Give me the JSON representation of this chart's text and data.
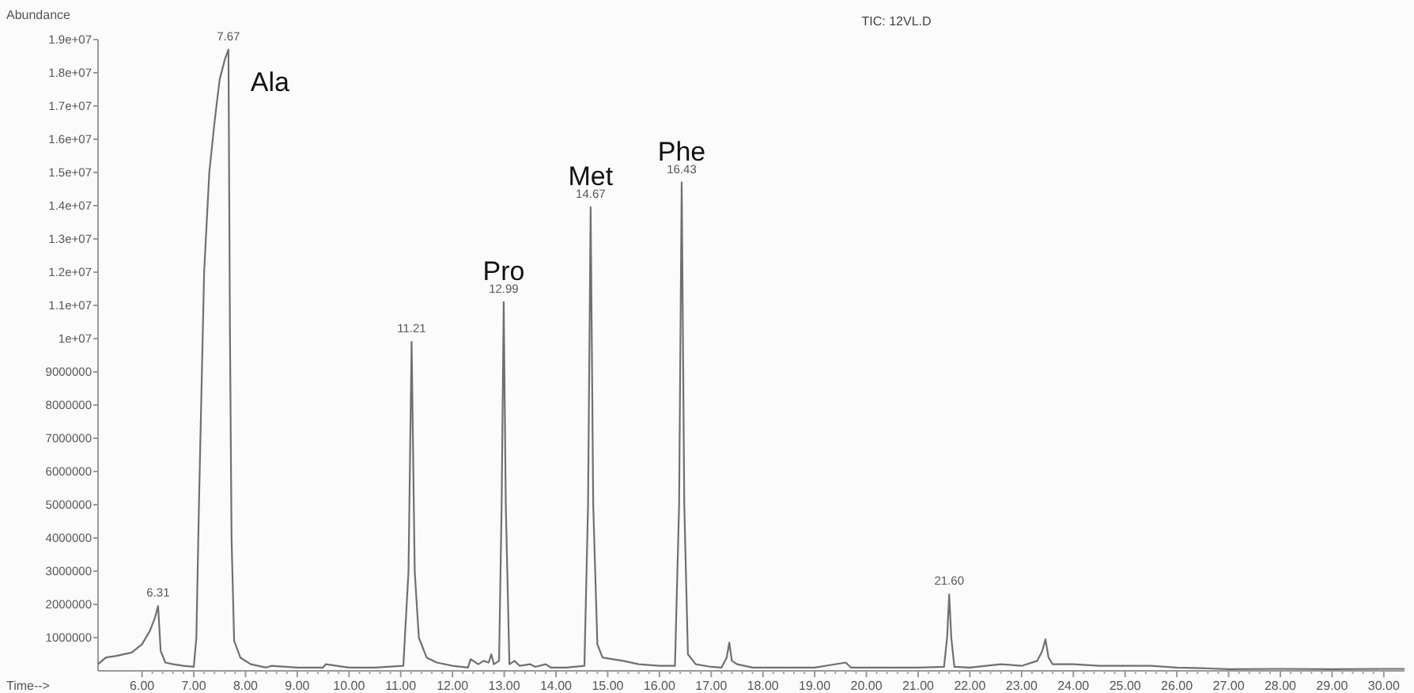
{
  "chart_data": {
    "type": "line",
    "title": "TIC: 12VL.D",
    "xlabel": "Time-->",
    "ylabel": "Abundance",
    "xlim": [
      5.15,
      30.4
    ],
    "xticks": [
      {
        "value": 6,
        "label": "6.00"
      },
      {
        "value": 7,
        "label": "7.00"
      },
      {
        "value": 8,
        "label": "8.00"
      },
      {
        "value": 9,
        "label": "9.00"
      },
      {
        "value": 10,
        "label": "10.00"
      },
      {
        "value": 11,
        "label": "11.00"
      },
      {
        "value": 12,
        "label": "12.00"
      },
      {
        "value": 13,
        "label": "13.00"
      },
      {
        "value": 14,
        "label": "14.00"
      },
      {
        "value": 15,
        "label": "15.00"
      },
      {
        "value": 16,
        "label": "16.00"
      },
      {
        "value": 17,
        "label": "17.00"
      },
      {
        "value": 18,
        "label": "18.00"
      },
      {
        "value": 19,
        "label": "19.00"
      },
      {
        "value": 20,
        "label": "20.00"
      },
      {
        "value": 21,
        "label": "21.00"
      },
      {
        "value": 22,
        "label": "22.00"
      },
      {
        "value": 23,
        "label": "23.00"
      },
      {
        "value": 24,
        "label": "24.00"
      },
      {
        "value": 25,
        "label": "25.00"
      },
      {
        "value": 26,
        "label": "26.00"
      },
      {
        "value": 27,
        "label": "27.00"
      },
      {
        "value": 28,
        "label": "28.00"
      },
      {
        "value": 29,
        "label": "29.00"
      },
      {
        "value": 30,
        "label": "30.00"
      }
    ],
    "ylim": [
      0,
      19000000
    ],
    "yticks": [
      1000000,
      2000000,
      3000000,
      4000000,
      5000000,
      6000000,
      7000000,
      8000000,
      9000000,
      {
        "value": 10000000,
        "label": "1e+07"
      },
      {
        "value": 11000000,
        "label": "1.1e+07"
      },
      {
        "value": 12000000,
        "label": "1.2e+07"
      },
      {
        "value": 13000000,
        "label": "1.3e+07"
      },
      {
        "value": 14000000,
        "label": "1.4e+07"
      },
      {
        "value": 15000000,
        "label": "1.5e+07"
      },
      {
        "value": 16000000,
        "label": "1.6e+07"
      },
      {
        "value": 17000000,
        "label": "1.7e+07"
      },
      {
        "value": 18000000,
        "label": "1.8e+07"
      },
      {
        "value": 19000000,
        "label": "1.9e+07"
      }
    ],
    "grid": false,
    "marker": "none",
    "line_style": "solid",
    "series": [
      {
        "color": "#707070",
        "x": [
          5.15,
          5.3,
          5.5,
          5.8,
          6.0,
          6.15,
          6.25,
          6.31,
          6.36,
          6.45,
          6.6,
          6.8,
          7.0,
          7.05,
          7.1,
          7.2,
          7.3,
          7.4,
          7.5,
          7.6,
          7.67,
          7.7,
          7.73,
          7.78,
          7.9,
          8.1,
          8.4,
          8.5,
          9.0,
          9.5,
          9.55,
          10.0,
          10.5,
          11.05,
          11.15,
          11.21,
          11.27,
          11.35,
          11.5,
          11.7,
          12.0,
          12.3,
          12.35,
          12.5,
          12.6,
          12.7,
          12.75,
          12.8,
          12.9,
          12.95,
          12.99,
          13.03,
          13.1,
          13.2,
          13.3,
          13.5,
          13.6,
          13.8,
          13.9,
          14.2,
          14.55,
          14.62,
          14.67,
          14.72,
          14.8,
          14.9,
          15.1,
          15.3,
          15.6,
          16.0,
          16.3,
          16.38,
          16.43,
          16.48,
          16.55,
          16.7,
          17.0,
          17.2,
          17.3,
          17.35,
          17.4,
          17.5,
          17.8,
          18.5,
          19.0,
          19.6,
          19.7,
          19.8,
          20.5,
          21.0,
          21.5,
          21.56,
          21.6,
          21.64,
          21.7,
          22.0,
          22.6,
          23.0,
          23.3,
          23.4,
          23.46,
          23.52,
          23.6,
          24.0,
          24.5,
          25.0,
          25.5,
          26.0,
          26.5,
          27.0,
          28.0,
          29.0,
          30.0,
          30.4
        ],
        "values": [
          200000,
          400000,
          450000,
          550000,
          800000,
          1200000,
          1600000,
          1950000,
          600000,
          250000,
          200000,
          150000,
          120000,
          1000000,
          5000000,
          12000000,
          15000000,
          16500000,
          17800000,
          18400000,
          18700000,
          10000000,
          4000000,
          900000,
          400000,
          200000,
          100000,
          150000,
          100000,
          100000,
          200000,
          100000,
          100000,
          150000,
          3000000,
          9900000,
          3000000,
          1000000,
          400000,
          250000,
          150000,
          100000,
          350000,
          200000,
          300000,
          250000,
          500000,
          200000,
          300000,
          5000000,
          11100000,
          5000000,
          200000,
          300000,
          150000,
          200000,
          120000,
          200000,
          100000,
          100000,
          150000,
          5000000,
          13950000,
          5000000,
          800000,
          400000,
          350000,
          300000,
          200000,
          150000,
          150000,
          5000000,
          14700000,
          5000000,
          500000,
          200000,
          120000,
          100000,
          400000,
          850000,
          300000,
          200000,
          100000,
          100000,
          100000,
          250000,
          100000,
          100000,
          100000,
          100000,
          120000,
          1000000,
          2300000,
          1000000,
          120000,
          100000,
          200000,
          150000,
          300000,
          600000,
          950000,
          400000,
          200000,
          200000,
          150000,
          150000,
          150000,
          100000,
          80000,
          50000,
          60000,
          50000,
          60000,
          60000
        ]
      }
    ],
    "annotations": [
      {
        "text": "6.31",
        "x": 6.31,
        "y": 1950000
      },
      {
        "text": "7.67",
        "x": 7.67,
        "y": 18700000
      },
      {
        "text": "11.21",
        "x": 11.21,
        "y": 9900000
      },
      {
        "text": "12.99",
        "x": 12.99,
        "y": 11100000
      },
      {
        "text": "14.67",
        "x": 14.67,
        "y": 13950000
      },
      {
        "text": "16.43",
        "x": 16.43,
        "y": 14700000
      },
      {
        "text": "21.60",
        "x": 21.6,
        "y": 2300000
      },
      {
        "text": "Ala",
        "x": 7.67,
        "y": 18700000
      },
      {
        "text": "Pro",
        "x": 12.99,
        "y": 11100000
      },
      {
        "text": "Met",
        "x": 14.67,
        "y": 13950000
      },
      {
        "text": "Phe",
        "x": 16.43,
        "y": 14700000
      }
    ]
  }
}
